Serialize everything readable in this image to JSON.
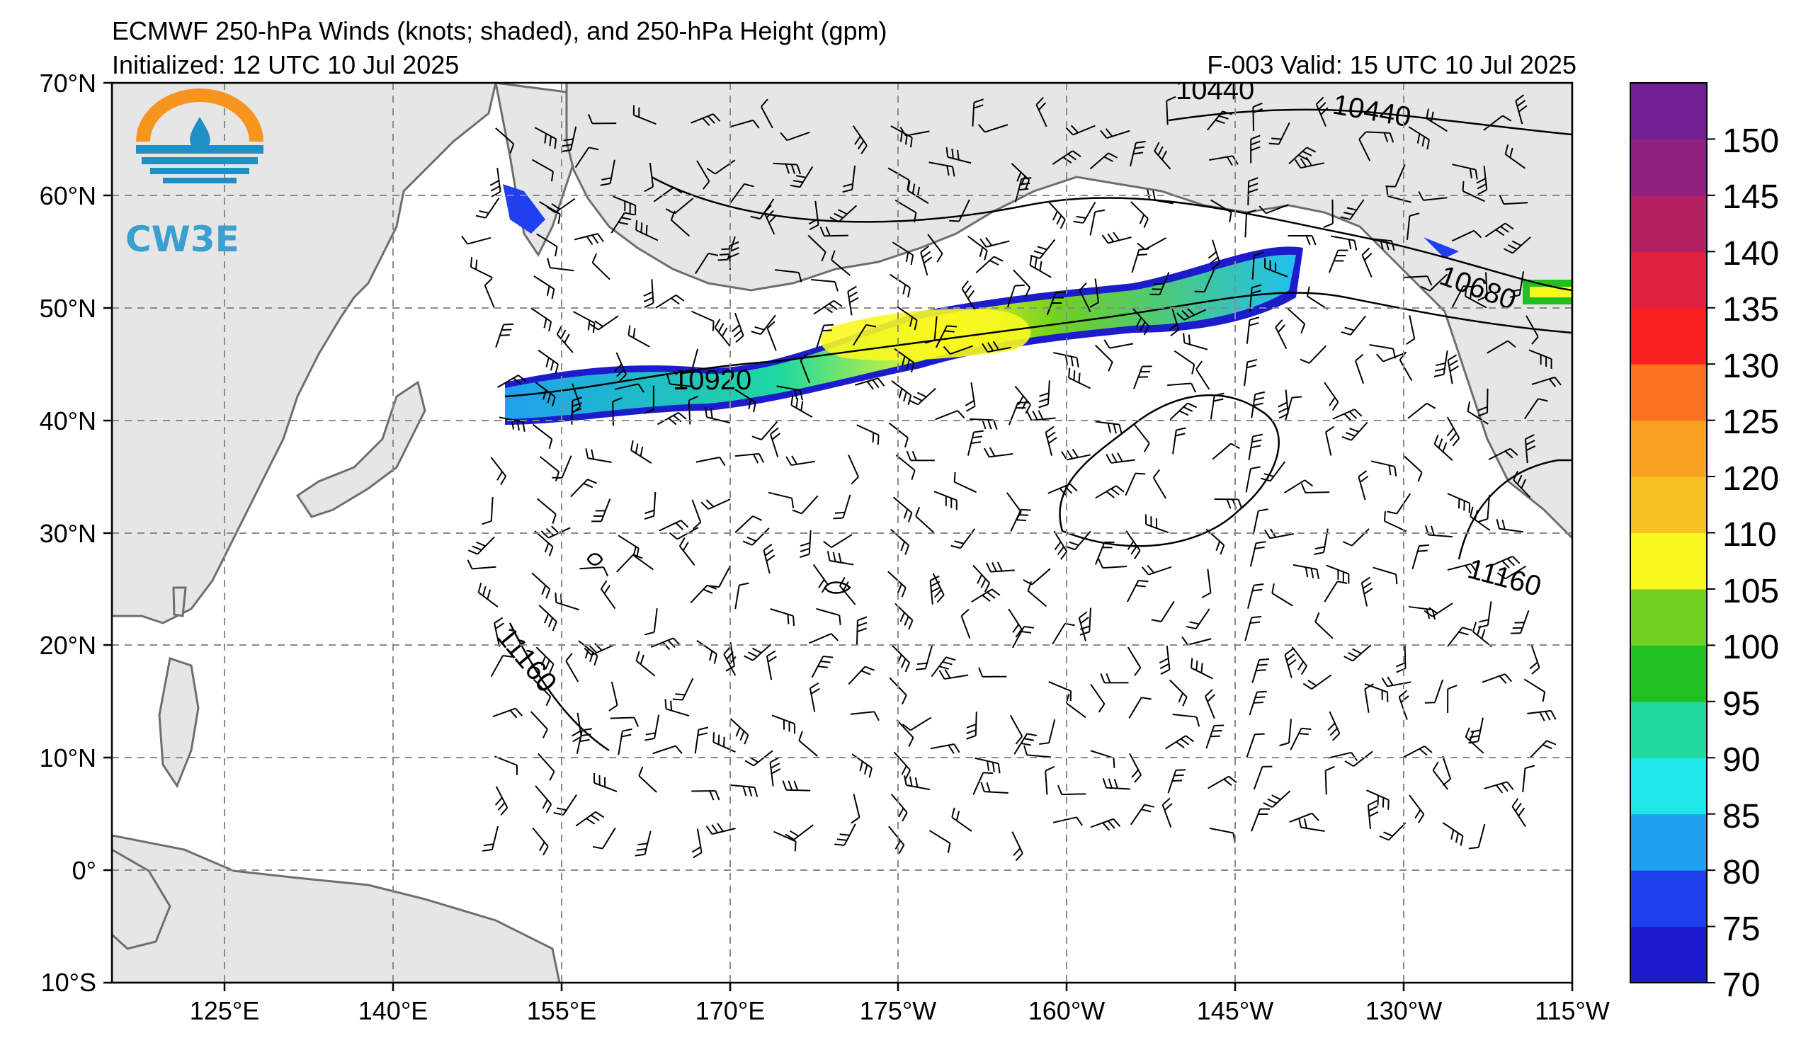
{
  "header": {
    "title": "ECMWF 250-hPa Winds (knots; shaded), and 250-hPa Height (gpm)",
    "initialized": "Initialized: 12 UTC 10 Jul 2025",
    "valid": "F-003  Valid: 15 UTC 10 Jul 2025"
  },
  "logo": {
    "text": "CW3E"
  },
  "map": {
    "lat_labels": [
      "70°N",
      "60°N",
      "50°N",
      "40°N",
      "30°N",
      "20°N",
      "10°N",
      "0°",
      "10°S"
    ],
    "lon_labels": [
      "125°E",
      "140°E",
      "155°E",
      "170°E",
      "175°W",
      "160°W",
      "145°W",
      "130°W",
      "115°W"
    ],
    "lat_range": [
      -10,
      70
    ],
    "lon_range": [
      115,
      245
    ],
    "grid": true
  },
  "contours": {
    "labels": [
      "10440",
      "10440",
      "10680",
      "10920",
      "11160",
      "11160"
    ]
  },
  "colorbar": {
    "ticks": [
      "150",
      "145",
      "140",
      "135",
      "130",
      "125",
      "120",
      "110",
      "105",
      "100",
      "95",
      "90",
      "85",
      "80",
      "75",
      "70"
    ],
    "colors": [
      "#1c1ccc",
      "#2040f0",
      "#20a0f0",
      "#20e8e8",
      "#20d8a0",
      "#20c020",
      "#70d020",
      "#f8f820",
      "#f8c020",
      "#f8a020",
      "#f87020",
      "#f82020",
      "#e02040",
      "#b02060",
      "#902080",
      "#702090"
    ]
  },
  "colors": {
    "land": "#e6e6e6",
    "coast": "#6e6e6e",
    "grid": "#8a8a8a"
  }
}
